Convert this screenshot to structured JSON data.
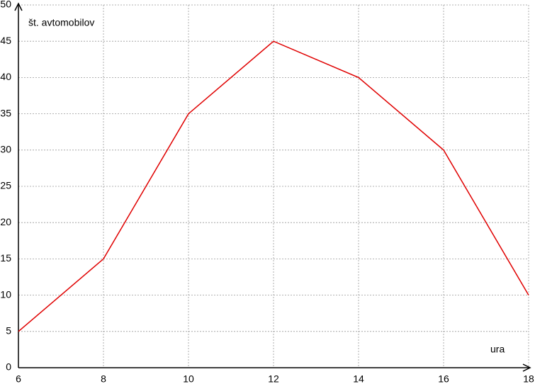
{
  "chart_data": {
    "type": "line",
    "x": [
      6,
      8,
      10,
      12,
      14,
      16,
      18
    ],
    "series": [
      {
        "name": null,
        "color": "#e00000",
        "values": [
          5,
          15,
          35,
          45,
          40,
          30,
          10
        ]
      }
    ],
    "xlim": [
      6,
      18
    ],
    "xticks": [
      6,
      8,
      10,
      12,
      14,
      16,
      18
    ],
    "ylim": [
      0,
      50
    ],
    "yticks": [
      0,
      5,
      10,
      15,
      20,
      25,
      30,
      35,
      40,
      45,
      50
    ],
    "xlabel": "ura",
    "ylabel": "št. avtomobilov",
    "grid": true
  }
}
